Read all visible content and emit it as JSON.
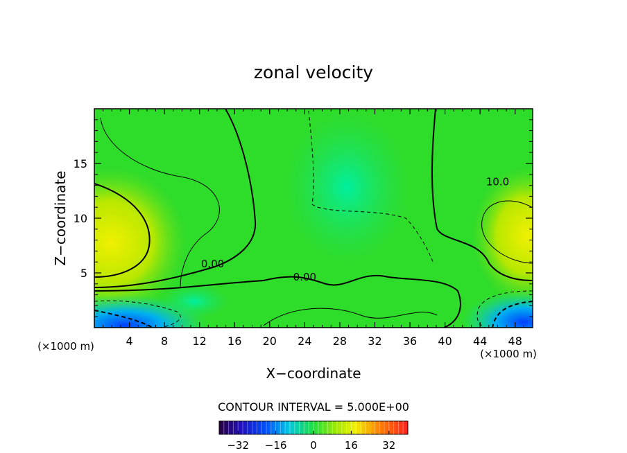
{
  "chart_data": {
    "type": "heatmap",
    "title": "zonal velocity",
    "xlabel": "X−coordinate",
    "ylabel": "Z−coordinate",
    "x_unit_left": "(×1000 m)",
    "x_unit_right": "(×1000 m)",
    "xlim": [
      0,
      50
    ],
    "ylim": [
      0,
      20
    ],
    "x_ticks": [
      4,
      8,
      12,
      16,
      20,
      24,
      28,
      32,
      36,
      40,
      44,
      48
    ],
    "x_tick_labels": [
      "4",
      "8",
      "12",
      "16",
      "20",
      "24",
      "28",
      "32",
      "36",
      "40",
      "44",
      "48"
    ],
    "y_ticks": [
      5,
      10,
      15
    ],
    "y_tick_labels": [
      "5",
      "10",
      "15"
    ],
    "contour_interval_text": "CONTOUR INTERVAL = 5.000E+00",
    "contour_labels": [
      {
        "text": "0.00",
        "x": 13.5,
        "z": 5.5
      },
      {
        "text": "0.00",
        "x": 24.0,
        "z": 4.3
      },
      {
        "text": "10.0",
        "x": 46.0,
        "z": 13.0
      }
    ],
    "colorbar": {
      "range": [
        -40,
        40
      ],
      "ticks": [
        -32,
        -16,
        0,
        16,
        32
      ],
      "tick_labels": [
        "−32",
        "−16",
        "0",
        "16",
        "32"
      ]
    },
    "grid": false,
    "legend": "none",
    "colors": {
      "background": "#ffffff",
      "dominant_field": "#22d72e",
      "positive_max": "#f0f000",
      "negative_max": "#1030ff"
    }
  }
}
